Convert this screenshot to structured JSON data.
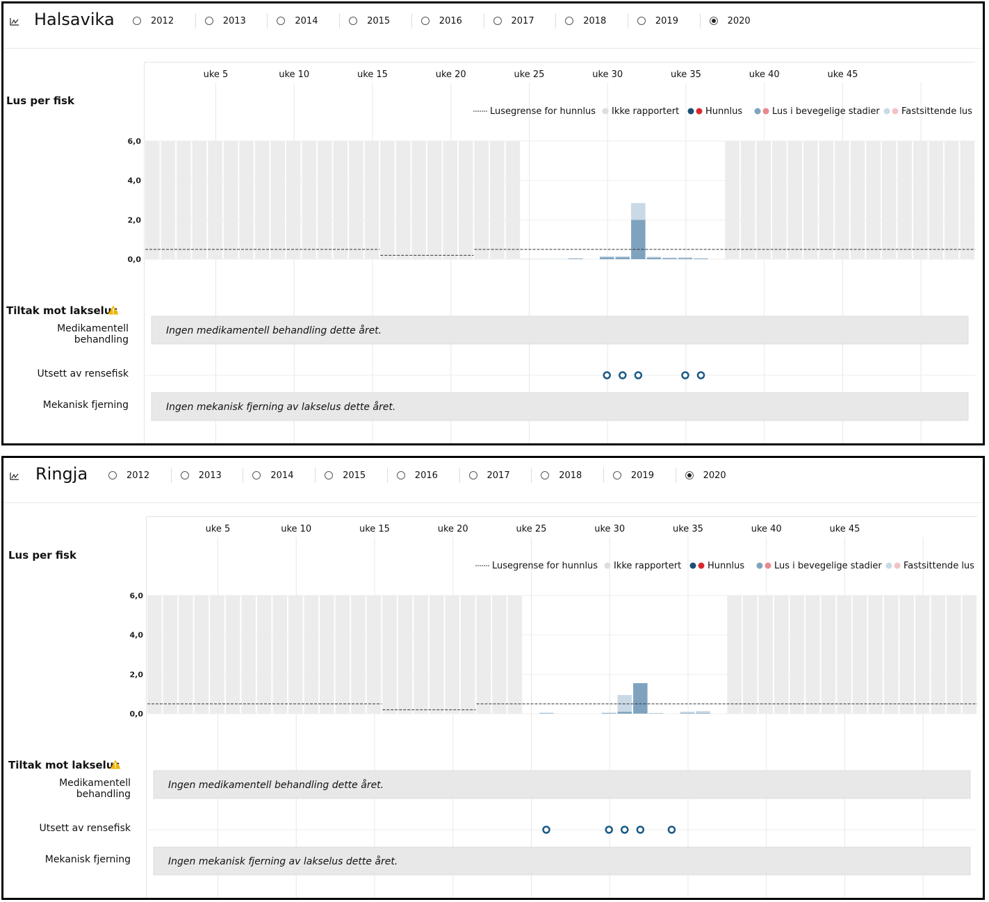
{
  "years": [
    "2012",
    "2013",
    "2014",
    "2015",
    "2016",
    "2017",
    "2018",
    "2019",
    "2020"
  ],
  "selected_year": "2020",
  "colors": {
    "not_reported": "#ececec",
    "hunnlus_dark": "#1b4e77",
    "hunnlus_red": "#d9292f",
    "bevegelige_blue": "#7fa3bf",
    "bevegelige_pink": "#e8898b",
    "fastsittende_blue": "#c9d9e6",
    "fastsittende_pink": "#f2c2c4",
    "treatment_marker": "#1b5a86",
    "note_box": "#e8e8e8"
  },
  "labels": {
    "lus_per_fisk": "Lus per fisk",
    "tiltak": "Tiltak mot lakselus",
    "medikamentell": "Medikamentell behandling",
    "rensefisk": "Utsett av rensefisk",
    "mekanisk": "Mekanisk fjerning",
    "no_medication": "Ingen medikamentell behandling dette året.",
    "no_mechanical": "Ingen mekanisk fjerning av lakselus dette året."
  },
  "legend": [
    "Lusegrense for hunnlus",
    "Ikke rapportert",
    "Hunnlus",
    "Lus i bevegelige stadier",
    "Fastsittende lus"
  ],
  "panels": [
    {
      "name": "Halsavika",
      "chart_data": {
        "type": "bar",
        "title": "Lus per fisk",
        "x_label_weeks": [
          "uke 5",
          "uke 10",
          "uke 15",
          "uke 20",
          "uke 25",
          "uke 30",
          "uke 35",
          "uke 40",
          "uke 45"
        ],
        "ylim": [
          0,
          6
        ],
        "yticks": [
          "0,0",
          "2,0",
          "4,0",
          "6,0"
        ],
        "weeks": 53,
        "not_reported_weeks": [
          1,
          2,
          3,
          4,
          5,
          6,
          7,
          8,
          9,
          10,
          11,
          12,
          13,
          14,
          15,
          16,
          17,
          18,
          19,
          20,
          21,
          22,
          23,
          24,
          38,
          39,
          40,
          41,
          42,
          43,
          44,
          45,
          46,
          47,
          48,
          49,
          50,
          51,
          52,
          53
        ],
        "series": [
          {
            "name": "Lus i bevegelige stadier",
            "week_values": {
              "28": 0.03,
              "30": 0.1,
              "31": 0.1,
              "32": 2.0,
              "33": 0.08,
              "34": 0.05,
              "35": 0.05,
              "36": 0.03
            }
          },
          {
            "name": "Fastsittende lus",
            "week_values": {
              "25": 0.02,
              "26": 0.02,
              "27": 0.02,
              "28": 0.02,
              "30": 0.05,
              "31": 0.05,
              "32": 0.85,
              "33": 0.05,
              "34": 0.03,
              "35": 0.05,
              "36": 0.02
            }
          }
        ],
        "threshold": [
          {
            "from_week": 1,
            "to_week": 15,
            "value": 0.5
          },
          {
            "from_week": 16,
            "to_week": 21,
            "value": 0.2
          },
          {
            "from_week": 22,
            "to_week": 53,
            "value": 0.5
          }
        ],
        "rensefisk_weeks": [
          30,
          31,
          32,
          35,
          36
        ]
      }
    },
    {
      "name": "Ringja",
      "chart_data": {
        "type": "bar",
        "title": "Lus per fisk",
        "x_label_weeks": [
          "uke 5",
          "uke 10",
          "uke 15",
          "uke 20",
          "uke 25",
          "uke 30",
          "uke 35",
          "uke 40",
          "uke 45"
        ],
        "ylim": [
          0,
          6
        ],
        "yticks": [
          "0,0",
          "2,0",
          "4,0",
          "6,0"
        ],
        "weeks": 53,
        "not_reported_weeks": [
          1,
          2,
          3,
          4,
          5,
          6,
          7,
          8,
          9,
          10,
          11,
          12,
          13,
          14,
          15,
          16,
          17,
          18,
          19,
          20,
          21,
          22,
          23,
          24,
          38,
          39,
          40,
          41,
          42,
          43,
          44,
          45,
          46,
          47,
          48,
          49,
          50,
          51,
          52,
          53
        ],
        "series": [
          {
            "name": "Lus i bevegelige stadier",
            "week_values": {
              "26": 0.02,
              "30": 0.03,
              "31": 0.1,
              "32": 1.55,
              "33": 0.02,
              "35": 0.03,
              "36": 0.03
            }
          },
          {
            "name": "Fastsittende lus",
            "week_values": {
              "26": 0.03,
              "30": 0.02,
              "31": 0.85,
              "32": 0.0,
              "35": 0.07,
              "36": 0.1
            }
          }
        ],
        "threshold": [
          {
            "from_week": 1,
            "to_week": 15,
            "value": 0.5
          },
          {
            "from_week": 16,
            "to_week": 21,
            "value": 0.2
          },
          {
            "from_week": 22,
            "to_week": 53,
            "value": 0.5
          }
        ],
        "rensefisk_weeks": [
          26,
          30,
          31,
          32,
          34
        ]
      }
    }
  ]
}
